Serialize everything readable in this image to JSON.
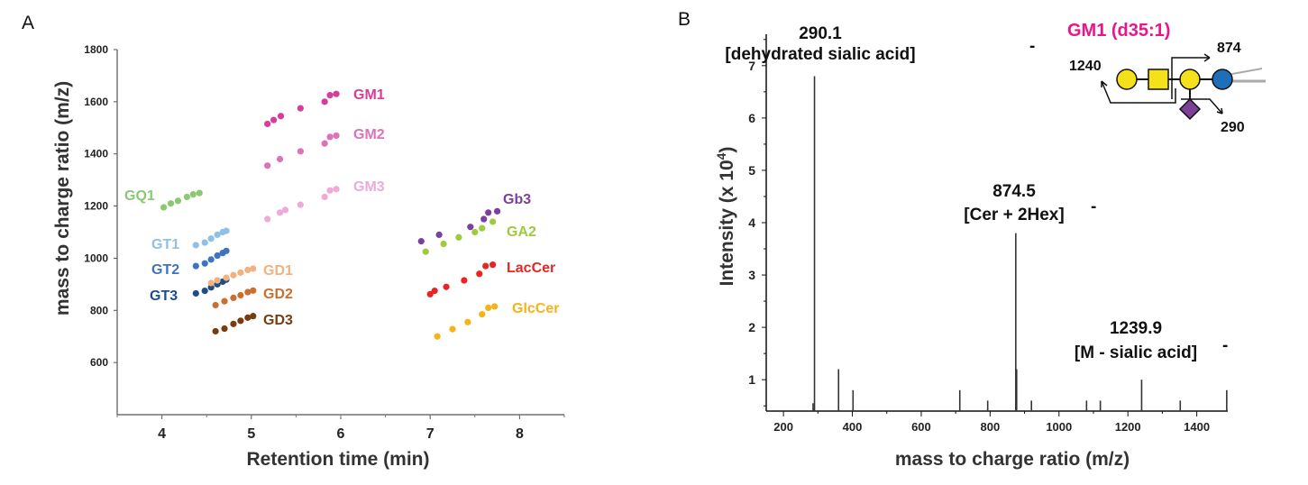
{
  "panels": {
    "a": "A",
    "b": "B"
  },
  "chart_data": [
    {
      "type": "scatter",
      "xlabel": "Retention time (min)",
      "ylabel": "mass to charge ratio (m/z)",
      "xlim": [
        3.5,
        8.5
      ],
      "ylim": [
        400,
        1800
      ],
      "xticks": [
        "4",
        "5",
        "6",
        "7",
        "8"
      ],
      "yticks": [
        "600",
        "800",
        "1000",
        "1200",
        "1400",
        "1600",
        "1800"
      ],
      "grid": false,
      "legend": "none",
      "series": [
        {
          "name": "GM1",
          "color": "#d63c9c",
          "x": [
            5.18,
            5.25,
            5.33,
            5.55,
            5.82,
            5.88,
            5.95
          ],
          "y": [
            1515,
            1530,
            1545,
            1575,
            1600,
            1625,
            1630
          ]
        },
        {
          "name": "GM2",
          "color": "#e071b8",
          "x": [
            5.18,
            5.32,
            5.55,
            5.82,
            5.88,
            5.95
          ],
          "y": [
            1355,
            1380,
            1410,
            1440,
            1465,
            1470
          ]
        },
        {
          "name": "GM3",
          "color": "#f0aad6",
          "x": [
            5.18,
            5.32,
            5.38,
            5.55,
            5.82,
            5.88,
            5.95
          ],
          "y": [
            1150,
            1175,
            1185,
            1205,
            1235,
            1260,
            1265
          ]
        },
        {
          "name": "GQ1",
          "color": "#8ac971",
          "x": [
            4.02,
            4.1,
            4.18,
            4.28,
            4.35,
            4.42
          ],
          "y": [
            1195,
            1210,
            1220,
            1235,
            1245,
            1250
          ]
        },
        {
          "name": "GT1",
          "color": "#8fc0e8",
          "x": [
            4.38,
            4.48,
            4.55,
            4.62,
            4.68,
            4.72
          ],
          "y": [
            1050,
            1060,
            1075,
            1090,
            1100,
            1105
          ]
        },
        {
          "name": "GT2",
          "color": "#3e73c4",
          "x": [
            4.38,
            4.48,
            4.55,
            4.62,
            4.68,
            4.72
          ],
          "y": [
            970,
            980,
            995,
            1010,
            1020,
            1028
          ]
        },
        {
          "name": "GT3",
          "color": "#1f4d8c",
          "x": [
            4.38,
            4.48,
            4.55,
            4.62,
            4.68,
            4.72
          ],
          "y": [
            865,
            875,
            888,
            900,
            910,
            918
          ]
        },
        {
          "name": "GD1",
          "color": "#f2b27e",
          "x": [
            4.55,
            4.62,
            4.72,
            4.8,
            4.88,
            4.96,
            5.02
          ],
          "y": [
            905,
            915,
            925,
            935,
            945,
            955,
            960
          ]
        },
        {
          "name": "GD2",
          "color": "#cc6e2e",
          "x": [
            4.6,
            4.7,
            4.8,
            4.88,
            4.96,
            5.02
          ],
          "y": [
            820,
            835,
            848,
            858,
            870,
            876
          ]
        },
        {
          "name": "GD3",
          "color": "#7a3b12",
          "x": [
            4.6,
            4.7,
            4.8,
            4.88,
            4.96,
            5.02
          ],
          "y": [
            720,
            730,
            748,
            760,
            772,
            778
          ]
        },
        {
          "name": "Gb3",
          "color": "#7b3fa0",
          "x": [
            6.9,
            7.1,
            7.45,
            7.6,
            7.65,
            7.75
          ],
          "y": [
            1065,
            1090,
            1120,
            1150,
            1175,
            1180
          ]
        },
        {
          "name": "GA2",
          "color": "#9ecb3c",
          "x": [
            6.95,
            7.15,
            7.32,
            7.5,
            7.58,
            7.7
          ],
          "y": [
            1025,
            1055,
            1080,
            1100,
            1115,
            1140
          ]
        },
        {
          "name": "LacCer",
          "color": "#e82424",
          "x": [
            7.0,
            7.05,
            7.18,
            7.38,
            7.55,
            7.62,
            7.7
          ],
          "y": [
            862,
            875,
            890,
            915,
            940,
            970,
            975
          ]
        },
        {
          "name": "GlcCer",
          "color": "#f7b21a",
          "x": [
            7.08,
            7.25,
            7.42,
            7.58,
            7.65,
            7.72
          ],
          "y": [
            700,
            728,
            755,
            785,
            810,
            815
          ]
        }
      ]
    },
    {
      "type": "bar",
      "xlabel": "mass to charge ratio (m/z)",
      "ylabel": "Intensity (x 10",
      "ylabel_sup": "4",
      "ylabel_close": ")",
      "xlim": [
        150,
        1490
      ],
      "ylim": [
        0.4,
        7.6
      ],
      "xticks": [
        "200",
        "400",
        "600",
        "800",
        "1000",
        "1200",
        "1400"
      ],
      "yticks": [
        "1",
        "2",
        "3",
        "4",
        "5",
        "6",
        "7"
      ],
      "grid": false,
      "peaks": {
        "mz": [
          286,
          290.1,
          360,
          402,
          712,
          793,
          874.5,
          877,
          920,
          1080,
          1120,
          1239.9,
          1352,
          1487
        ],
        "intensity": [
          0.55,
          6.8,
          1.2,
          0.8,
          0.8,
          0.6,
          3.8,
          1.2,
          0.6,
          0.6,
          0.6,
          1.0,
          0.6,
          0.8
        ]
      },
      "annotations": [
        {
          "mz_label": "290.1",
          "fragment": "[dehydrated sialic acid]",
          "charge": "-"
        },
        {
          "mz_label": "874.5",
          "fragment": "[Cer + 2Hex]",
          "charge": "-"
        },
        {
          "mz_label": "1239.9",
          "fragment": "[M - sialic acid]",
          "charge": "-"
        }
      ]
    }
  ],
  "inset": {
    "title": "GM1 (d35:1)",
    "title_color": "#e8168a",
    "fragments": [
      "1240",
      "874",
      "290"
    ],
    "glyphs": [
      "yellow-circle",
      "yellow-square",
      "yellow-circle",
      "blue-circle",
      "purple-diamond"
    ],
    "colors": {
      "galactose": "#f5e11a",
      "galnac": "#f5e11a",
      "glucose": "#1f6fb8",
      "sialic": "#7d3f98"
    }
  }
}
